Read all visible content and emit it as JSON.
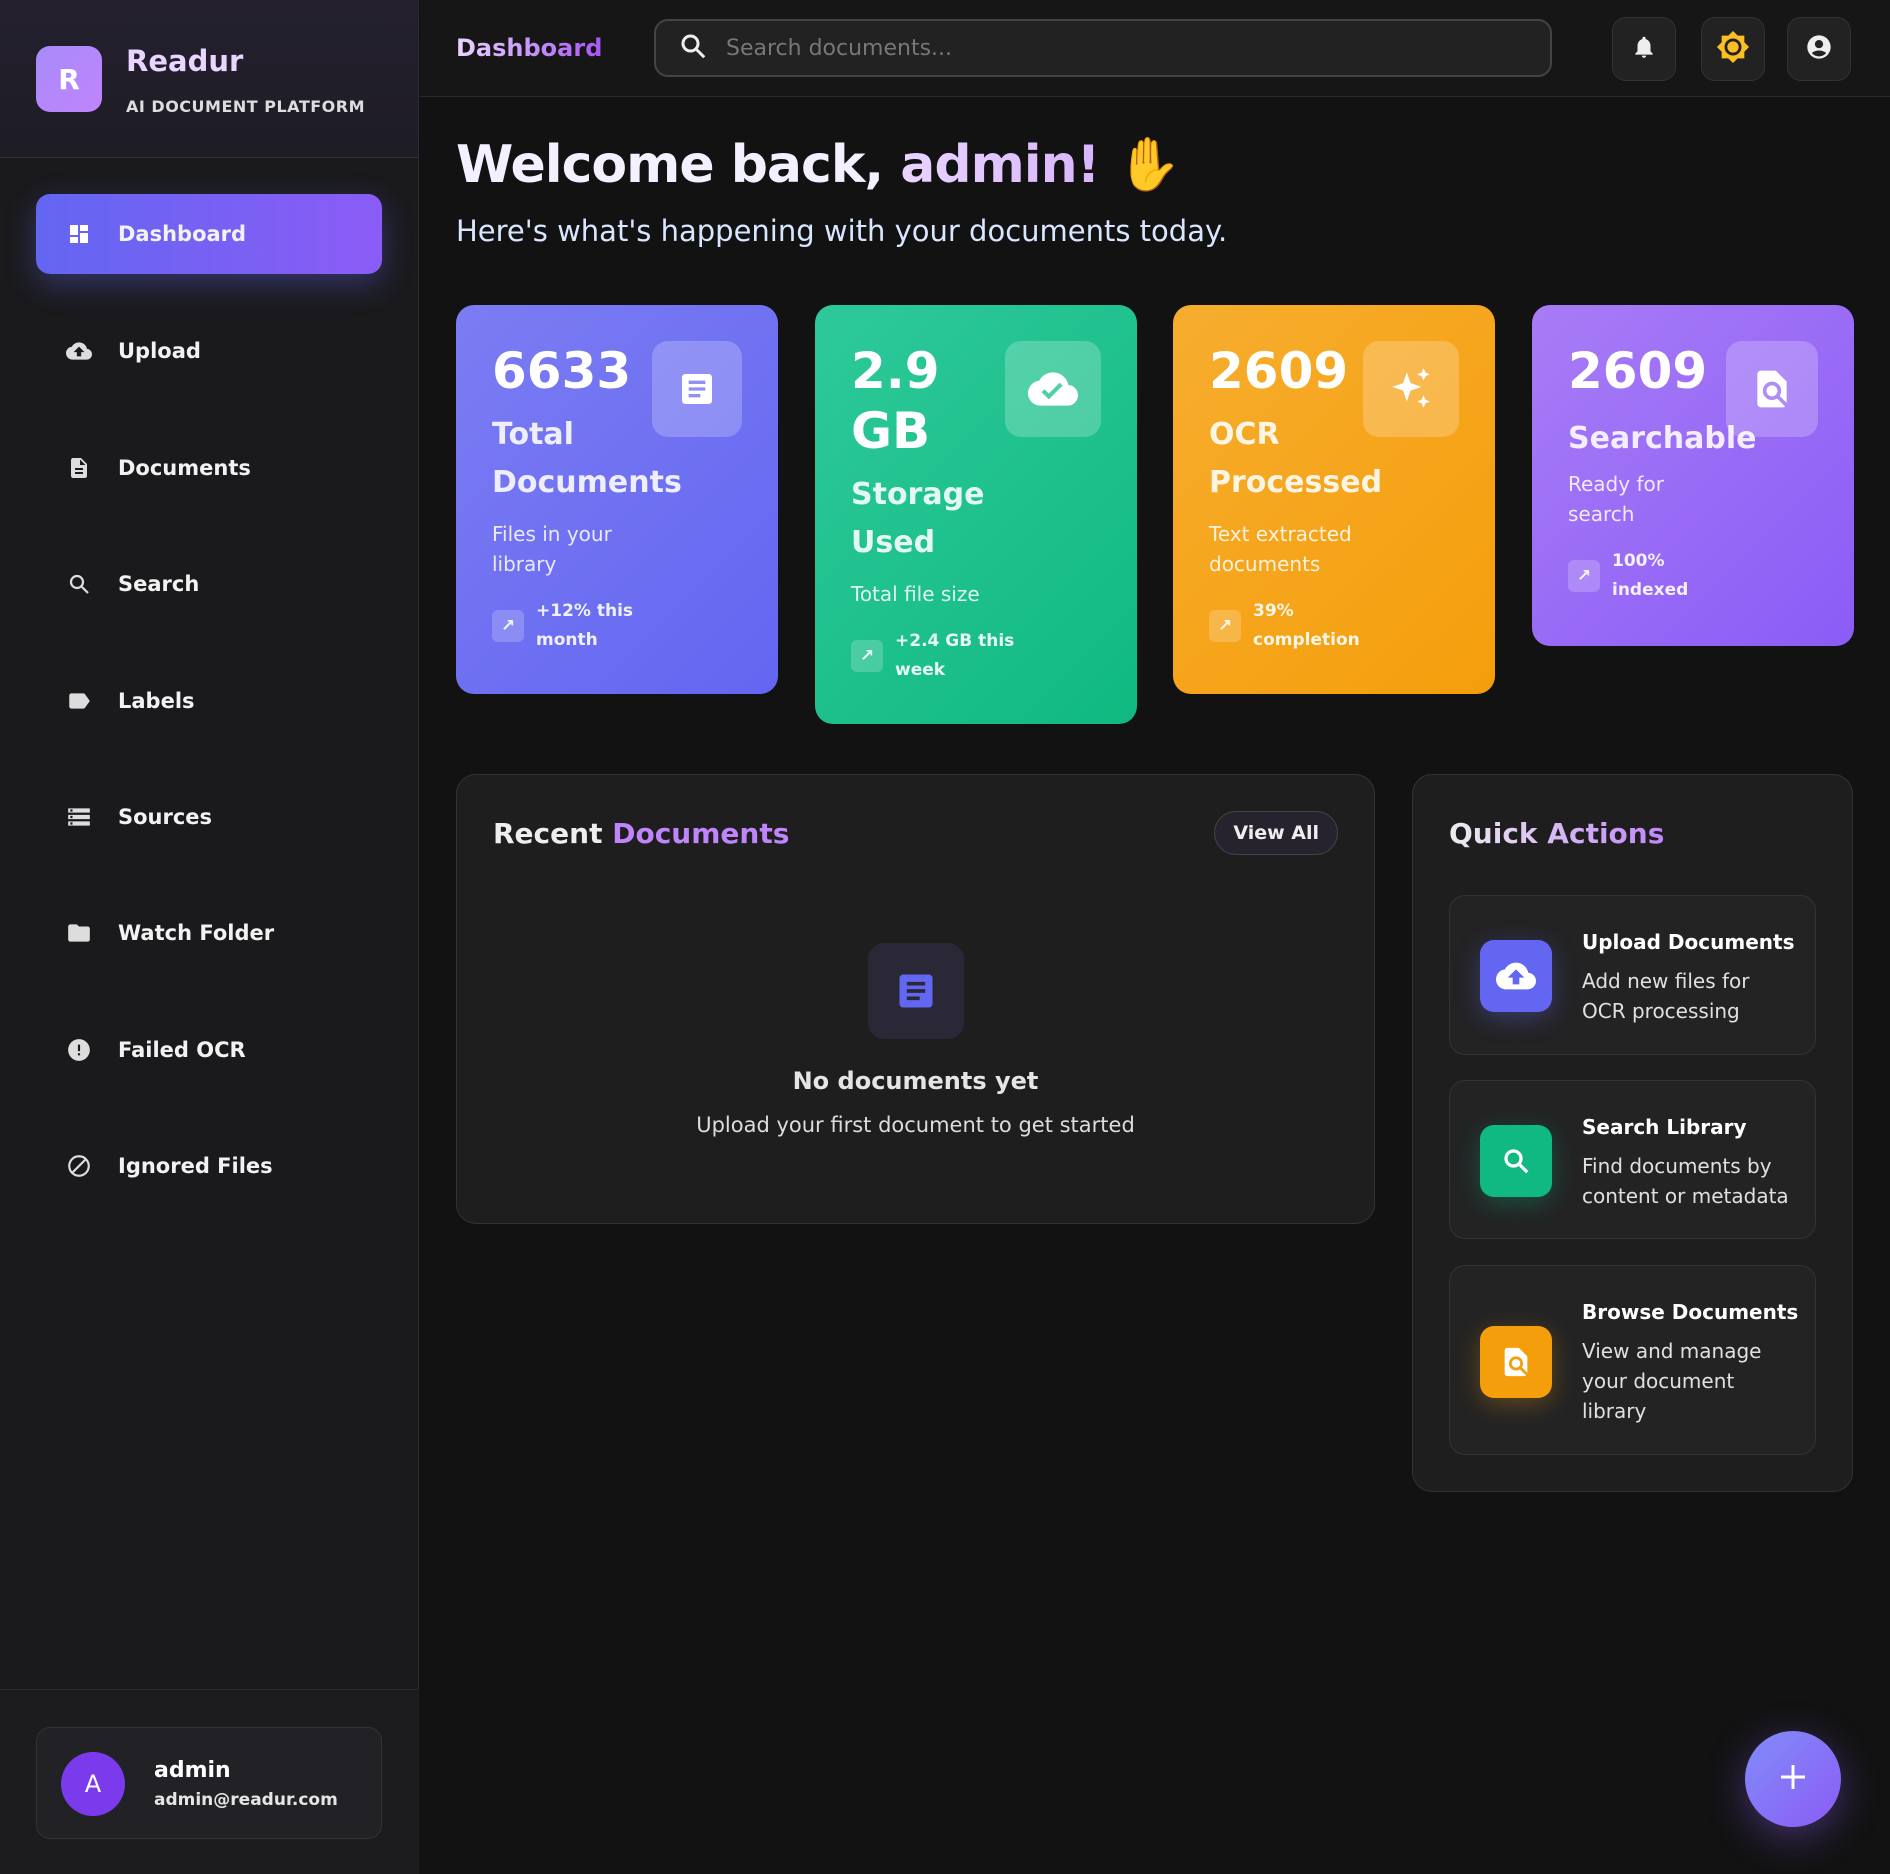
{
  "brand": {
    "logo_letter": "R",
    "name": "Readur",
    "tagline": "AI DOCUMENT PLATFORM"
  },
  "sidebar": {
    "items": [
      {
        "label": "Dashboard",
        "icon": "dashboard-icon",
        "active": true
      },
      {
        "label": "Upload",
        "icon": "cloud-upload-icon"
      },
      {
        "label": "Documents",
        "icon": "document-icon"
      },
      {
        "label": "Search",
        "icon": "search-icon"
      },
      {
        "label": "Labels",
        "icon": "label-icon"
      },
      {
        "label": "Sources",
        "icon": "storage-icon"
      },
      {
        "label": "Watch Folder",
        "icon": "folder-icon"
      },
      {
        "label": "Failed OCR",
        "icon": "error-icon"
      },
      {
        "label": "Ignored Files",
        "icon": "block-icon"
      }
    ]
  },
  "user": {
    "avatar_letter": "A",
    "name": "admin",
    "email": "admin@readur.com"
  },
  "header": {
    "title": "Dashboard",
    "search_placeholder": "Search documents..."
  },
  "welcome": {
    "title_prefix": "Welcome back, ",
    "title_name": "admin!",
    "subtitle": "Here's what's happening with your documents today."
  },
  "stats": [
    {
      "value": "6633",
      "title": "Total Documents",
      "desc": "Files in your library",
      "trend": "+12% this month",
      "color": "#6366f1"
    },
    {
      "value": "2.9 GB",
      "title": "Storage Used",
      "desc": "Total file size",
      "trend": "+2.4 GB this week",
      "color": "#10b981"
    },
    {
      "value": "2609",
      "title": "OCR Processed",
      "desc": "Text extracted documents",
      "trend": "39% completion",
      "color": "#f59e0b"
    },
    {
      "value": "2609",
      "title": "Searchable",
      "desc": "Ready for search",
      "trend": "100% indexed",
      "color": "#8b5cf6"
    }
  ],
  "recent": {
    "title_a": "Recent ",
    "title_b": "Documents",
    "view_all": "View All",
    "empty_title": "No documents yet",
    "empty_sub": "Upload your first document to get started"
  },
  "quick": {
    "title": "Quick Actions",
    "items": [
      {
        "title": "Upload Documents",
        "desc": "Add new files for OCR processing",
        "color": "#6366f1"
      },
      {
        "title": "Search Library",
        "desc": "Find documents by content or metadata",
        "color": "#10b981"
      },
      {
        "title": "Browse Documents",
        "desc": "View and manage your document library",
        "color": "#f59e0b"
      }
    ]
  }
}
